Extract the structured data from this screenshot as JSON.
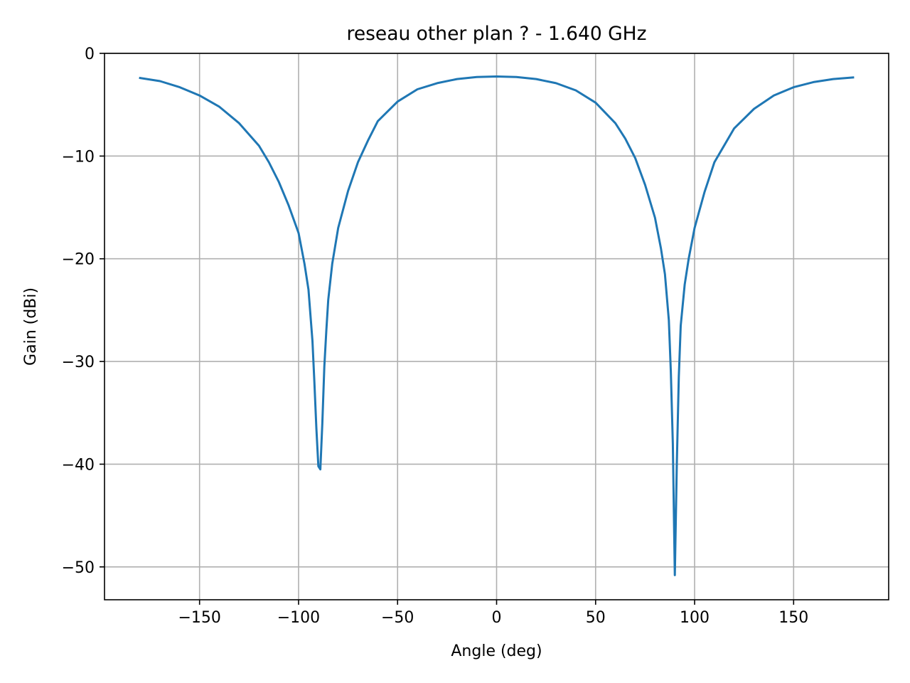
{
  "chart_data": {
    "type": "line",
    "title": "reseau other plan ? - 1.640 GHz",
    "xlabel": "Angle (deg)",
    "ylabel": "Gain (dBi)",
    "xlim": [
      -198,
      198
    ],
    "ylim": [
      -53.2,
      0
    ],
    "xticks": [
      -150,
      -100,
      -50,
      0,
      50,
      100,
      150
    ],
    "xtick_labels": [
      "−150",
      "−100",
      "−50",
      "0",
      "50",
      "100",
      "150"
    ],
    "yticks": [
      0,
      -10,
      -20,
      -30,
      -40,
      -50
    ],
    "ytick_labels": [
      "0",
      "−10",
      "−20",
      "−30",
      "−40",
      "−50"
    ],
    "grid": true,
    "series": [
      {
        "color": "#1f77b4",
        "x": [
          -180,
          -170,
          -160,
          -150,
          -140,
          -130,
          -120,
          -115,
          -110,
          -105,
          -100,
          -97,
          -95,
          -93,
          -92,
          -91,
          -90,
          -89,
          -88,
          -87,
          -86,
          -85,
          -83,
          -80,
          -75,
          -70,
          -65,
          -60,
          -50,
          -40,
          -30,
          -20,
          -10,
          0,
          10,
          20,
          30,
          40,
          50,
          60,
          65,
          70,
          75,
          80,
          83,
          85,
          87,
          88,
          89,
          90,
          91,
          92,
          93,
          95,
          97,
          100,
          105,
          110,
          120,
          130,
          140,
          150,
          160,
          170,
          180
        ],
        "y": [
          -2.4,
          -2.7,
          -3.3,
          -4.1,
          -5.2,
          -6.8,
          -9.0,
          -10.6,
          -12.5,
          -14.8,
          -17.5,
          -20.5,
          -23.0,
          -28.0,
          -32.0,
          -36.5,
          -40.2,
          -40.5,
          -36.0,
          -30.5,
          -27.0,
          -24.0,
          -20.5,
          -17.0,
          -13.4,
          -10.6,
          -8.5,
          -6.6,
          -4.7,
          -3.5,
          -2.9,
          -2.5,
          -2.3,
          -2.25,
          -2.3,
          -2.5,
          -2.9,
          -3.6,
          -4.8,
          -6.8,
          -8.3,
          -10.2,
          -12.8,
          -16.0,
          -19.0,
          -21.5,
          -26.0,
          -31.0,
          -38.0,
          -50.8,
          -40.0,
          -31.5,
          -26.5,
          -22.5,
          -20.0,
          -17.0,
          -13.5,
          -10.6,
          -7.3,
          -5.4,
          -4.1,
          -3.3,
          -2.8,
          -2.5,
          -2.35
        ]
      }
    ]
  }
}
